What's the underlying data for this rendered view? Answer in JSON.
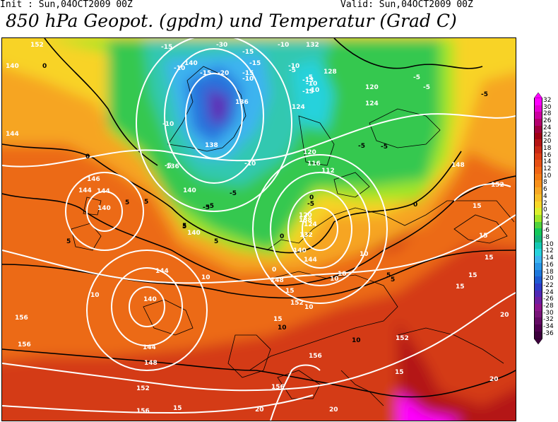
{
  "header": {
    "init": "Init : Sun,04OCT2009 00Z",
    "valid": "Valid: Sun,04OCT2009 00Z",
    "title": "850 hPa Geopot. (gpdm) und Temperatur (Grad C)"
  },
  "legend": {
    "values": [
      "32",
      "30",
      "28",
      "26",
      "24",
      "22",
      "20",
      "18",
      "16",
      "14",
      "12",
      "10",
      "8",
      "6",
      "4",
      "2",
      "0",
      "-2",
      "-4",
      "-6",
      "-8",
      "-10",
      "-12",
      "-14",
      "-16",
      "-18",
      "-20",
      "-22",
      "-24",
      "-26",
      "-28",
      "-30",
      "-32",
      "-34",
      "-36"
    ],
    "colors": [
      "#ff00ff",
      "#e600d2",
      "#cc00a0",
      "#b4006e",
      "#a0003c",
      "#a00014",
      "#b41414",
      "#c82814",
      "#dc3c14",
      "#e65014",
      "#f06414",
      "#f47a14",
      "#f89019",
      "#f8a823",
      "#f8c028",
      "#f8d828",
      "#dcf02d",
      "#a0e628",
      "#50d23c",
      "#14c85a",
      "#14b478",
      "#14c8b4",
      "#28d2dc",
      "#3cb4f0",
      "#2896e6",
      "#1e78dc",
      "#1e5ad2",
      "#2d3cc8",
      "#5028b4",
      "#6e1ea0",
      "#8c148c",
      "#781478",
      "#640a64",
      "#500050",
      "#3c003c"
    ]
  },
  "map": {
    "geopotential_labels": [
      "152",
      "140",
      "132",
      "128",
      "120",
      "124",
      "144",
      "140",
      "136",
      "138",
      "140",
      "124",
      "120",
      "116",
      "112",
      "146",
      "144",
      "140",
      "136",
      "138",
      "132",
      "124",
      "120",
      "140",
      "144",
      "148",
      "144",
      "140",
      "152",
      "156",
      "144",
      "140",
      "144",
      "148",
      "152",
      "156",
      "156",
      "156",
      "152",
      "156",
      "148",
      "152"
    ],
    "temperature_labels": [
      "0",
      "-15",
      "-30",
      "-15",
      "-10",
      "-15",
      "-20",
      "-15",
      "-10",
      "-10",
      "-5",
      "-15",
      "-10",
      "-5",
      "-10",
      "-15",
      "-13",
      "-10",
      "-5",
      "-10",
      "-5",
      "-5",
      "-5",
      "-5",
      "0",
      "0",
      "0",
      "5",
      "5",
      "5",
      "5",
      "5",
      "10",
      "10",
      "10",
      "10",
      "10",
      "15",
      "15",
      "15",
      "15",
      "15",
      "20",
      "20",
      "20",
      "20",
      "15",
      "10",
      "15",
      "15",
      "10",
      "0",
      "5",
      "-5",
      "-10",
      "-5",
      "-5",
      "0",
      "5",
      "10",
      "15",
      "-5",
      "-5",
      "5"
    ]
  }
}
